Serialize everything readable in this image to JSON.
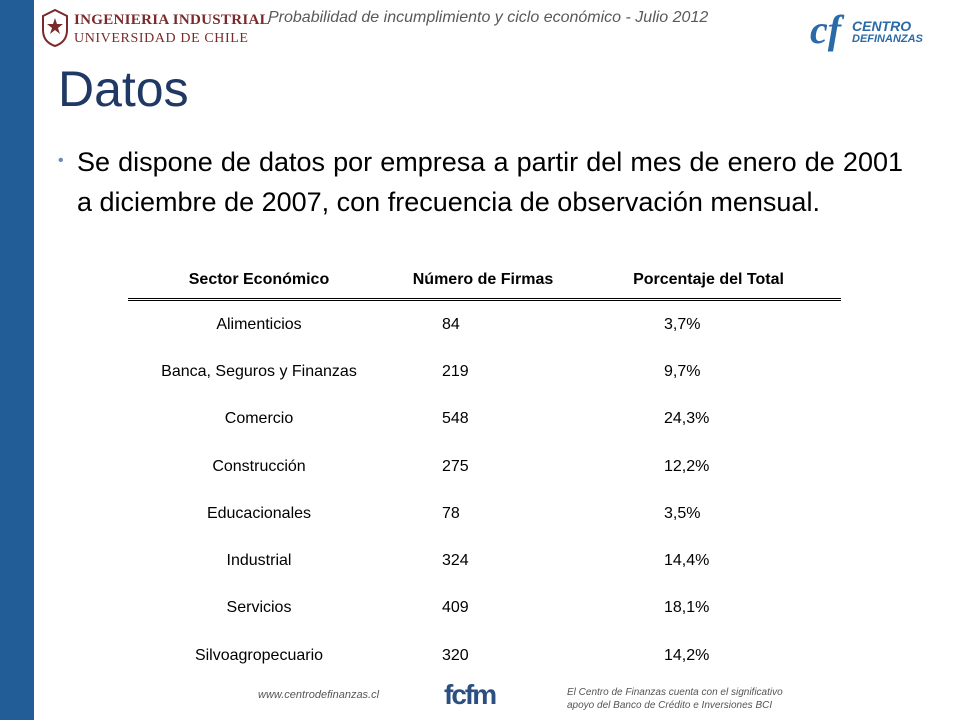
{
  "header": {
    "title": "Probabilidad de incumplimiento y ciclo económico - Julio 2012",
    "logo_left_line1": "INGENIERIA INDUSTRIAL",
    "logo_left_line2": "UNIVERSIDAD DE CHILE",
    "logo_right_mark": "cf",
    "logo_right_line1": "CENTRO",
    "logo_right_line2": "DEFINANZAS"
  },
  "slide": {
    "title": "Datos",
    "bullet": "Se dispone de datos por empresa a partir del mes de enero de 2001 a diciembre de 2007, con frecuencia de observación mensual."
  },
  "table": {
    "headers": [
      "Sector Económico",
      "Número de Firmas",
      "Porcentaje del Total"
    ],
    "rows": [
      [
        "Alimenticios",
        "84",
        "3,7%"
      ],
      [
        "Banca, Seguros y Finanzas",
        "219",
        "9,7%"
      ],
      [
        "Comercio",
        "548",
        "24,3%"
      ],
      [
        "Construcción",
        "275",
        "12,2%"
      ],
      [
        "Educacionales",
        "78",
        "3,5%"
      ],
      [
        "Industrial",
        "324",
        "14,4%"
      ],
      [
        "Servicios",
        "409",
        "18,1%"
      ],
      [
        "Silvoagropecuario",
        "320",
        "14,2%"
      ]
    ]
  },
  "footer": {
    "url": "www.centrodefinanzas.cl",
    "logo_center": "fcfm",
    "note_line1": "El Centro de Finanzas cuenta con el significativo",
    "note_line2": "apoyo del Banco de Crédito e Inversiones BCI"
  },
  "colors": {
    "sidebar": "#235d98",
    "title": "#1f3864",
    "brand_blue": "#2a6aa8"
  }
}
